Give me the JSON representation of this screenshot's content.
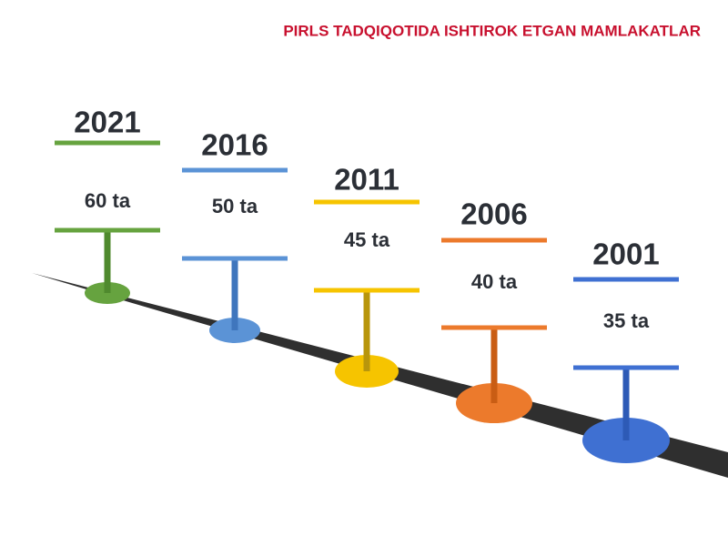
{
  "title": "PIRLS TADQIQOTIDA ISHTIROK ETGAN MAMLAKATLAR",
  "items": [
    {
      "year": "2021",
      "count": "60 ta"
    },
    {
      "year": "2016",
      "count": "50 ta"
    },
    {
      "year": "2011",
      "count": "45 ta"
    },
    {
      "year": "2006",
      "count": "40 ta"
    },
    {
      "year": "2001",
      "count": "35 ta"
    }
  ]
}
